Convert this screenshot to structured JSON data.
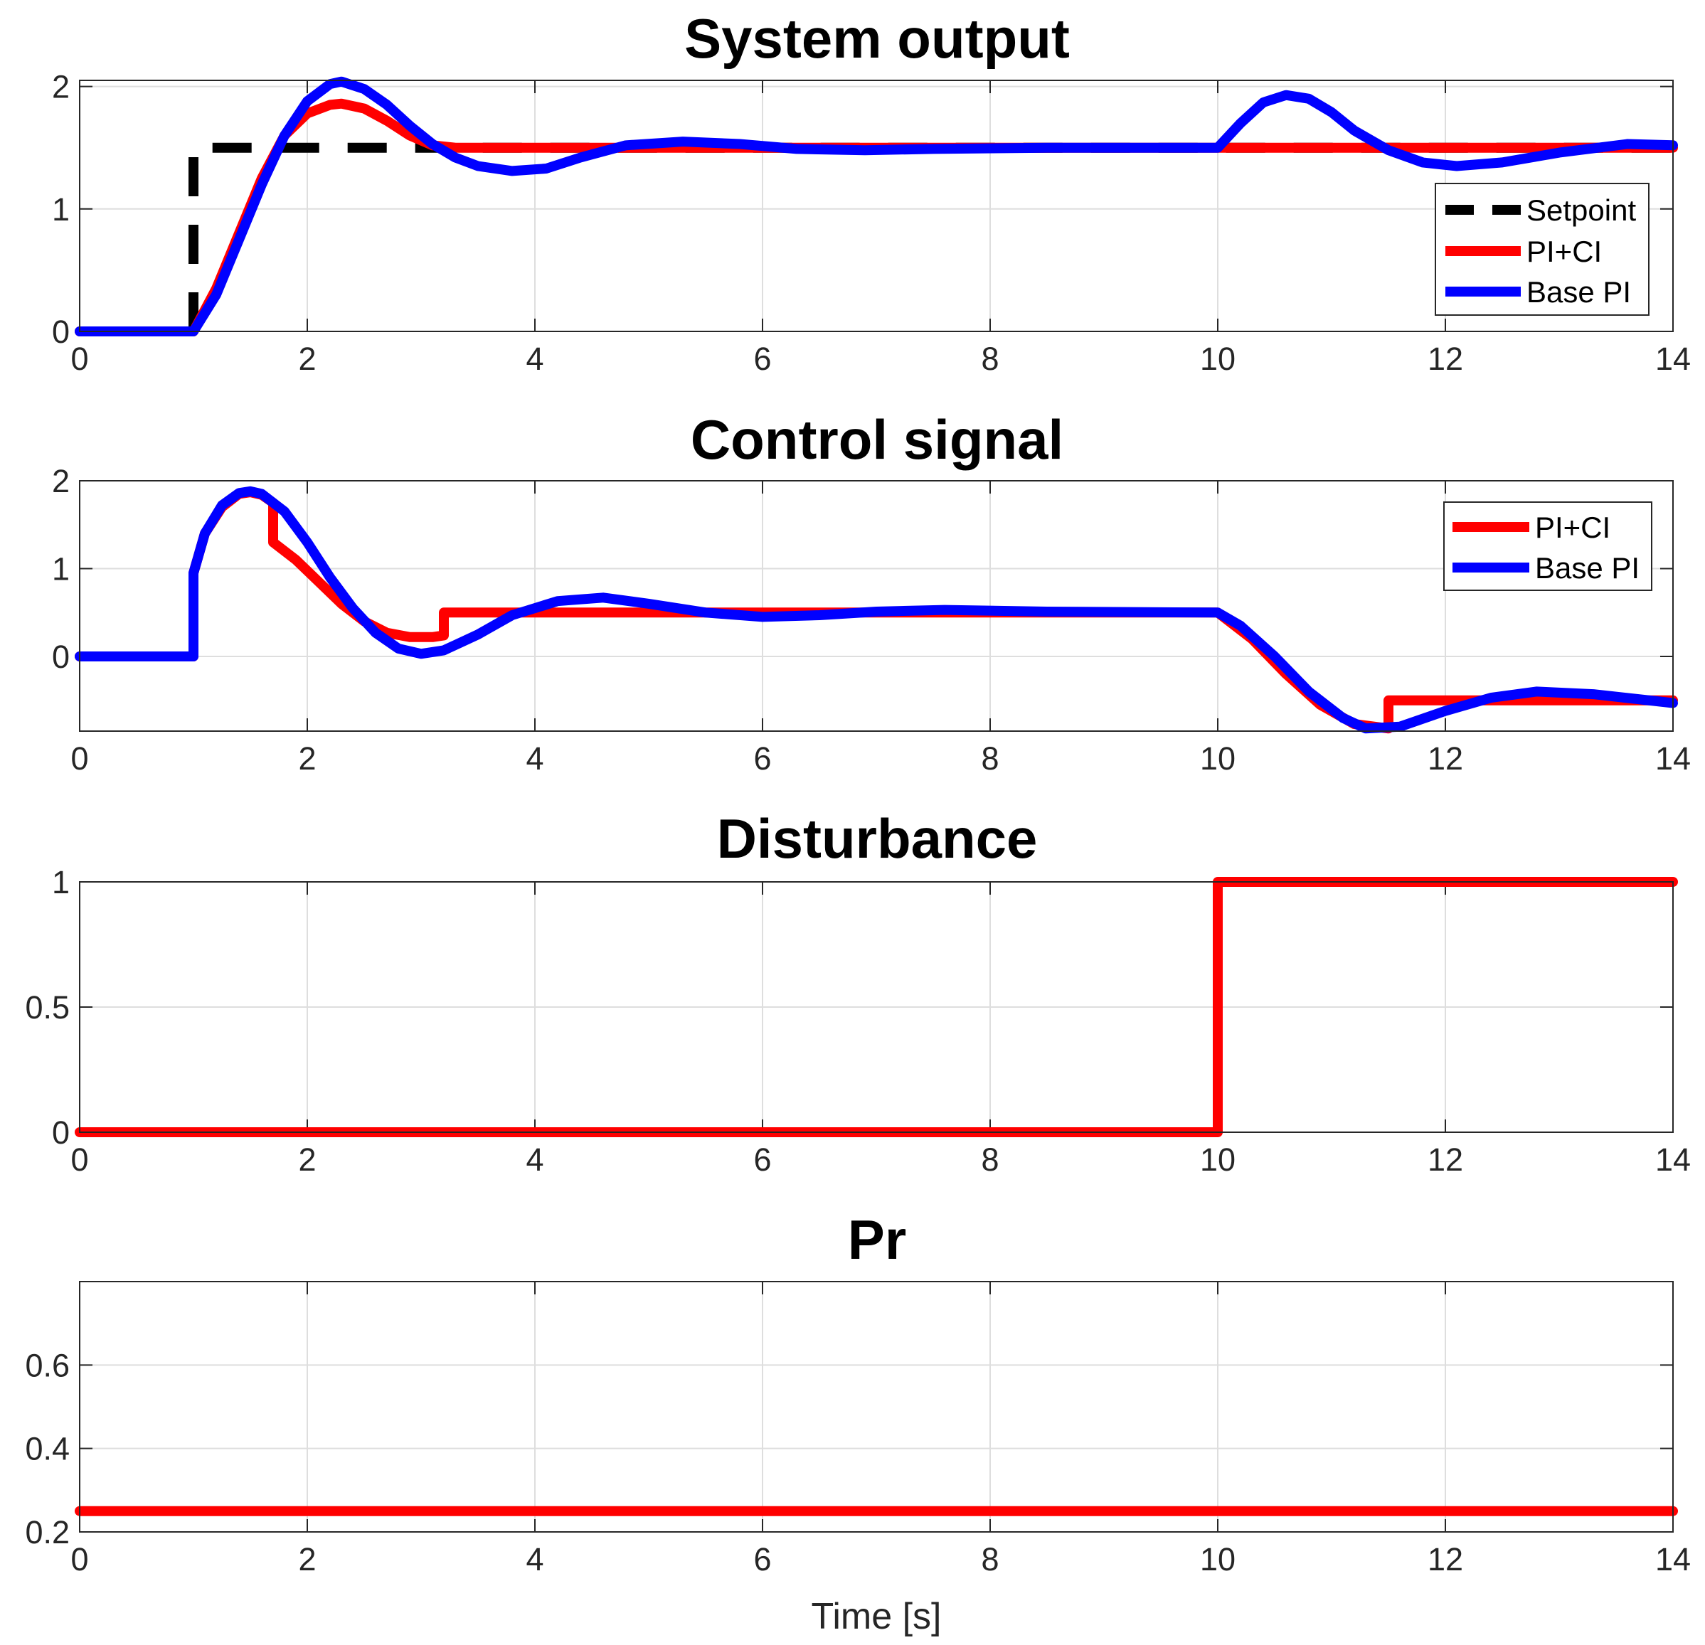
{
  "colors": {
    "setpoint": "#000000",
    "pici": "#ff0000",
    "basepi": "#0000ff"
  },
  "chart_data": [
    {
      "type": "line",
      "title": "System output",
      "xlabel": "",
      "ylabel": "",
      "xlim": [
        0,
        14
      ],
      "ylim": [
        0,
        2.05
      ],
      "xticks": [
        0,
        2,
        4,
        6,
        8,
        10,
        12,
        14
      ],
      "xtick_labels": [
        "0",
        "2",
        "4",
        "6",
        "8",
        "10",
        "12",
        "14"
      ],
      "yticks": [
        0,
        1,
        2
      ],
      "ytick_labels": [
        "0",
        "1",
        "2"
      ],
      "grid": true,
      "legend_position": "right",
      "series": [
        {
          "name": "Setpoint",
          "style": "dashed",
          "color_key": "setpoint",
          "x": [
            1,
            1,
            14
          ],
          "y": [
            0,
            1.5,
            1.5
          ]
        },
        {
          "name": "PI+CI",
          "style": "solid",
          "color_key": "pici",
          "x": [
            0,
            1,
            1.2,
            1.4,
            1.6,
            1.8,
            2.0,
            2.2,
            2.3,
            2.5,
            2.7,
            2.9,
            3.1,
            3.3,
            3.5,
            4,
            14
          ],
          "y": [
            0,
            0,
            0.35,
            0.8,
            1.25,
            1.6,
            1.78,
            1.85,
            1.86,
            1.82,
            1.72,
            1.6,
            1.52,
            1.5,
            1.5,
            1.5,
            1.5
          ]
        },
        {
          "name": "Base PI",
          "style": "solid",
          "color_key": "basepi",
          "x": [
            0,
            1,
            1.2,
            1.4,
            1.6,
            1.8,
            2.0,
            2.2,
            2.3,
            2.5,
            2.7,
            2.9,
            3.1,
            3.3,
            3.5,
            3.8,
            4.1,
            4.4,
            4.8,
            5.3,
            5.8,
            6.3,
            6.9,
            7.5,
            8.5,
            10,
            10.2,
            10.4,
            10.6,
            10.8,
            11.0,
            11.2,
            11.5,
            11.8,
            12.1,
            12.5,
            13.0,
            13.6,
            14
          ],
          "y": [
            0,
            0,
            0.3,
            0.75,
            1.2,
            1.6,
            1.88,
            2.02,
            2.04,
            1.98,
            1.85,
            1.68,
            1.53,
            1.42,
            1.35,
            1.31,
            1.33,
            1.42,
            1.52,
            1.55,
            1.53,
            1.49,
            1.48,
            1.49,
            1.5,
            1.5,
            1.7,
            1.87,
            1.93,
            1.9,
            1.79,
            1.64,
            1.48,
            1.38,
            1.35,
            1.38,
            1.46,
            1.53,
            1.52
          ]
        }
      ]
    },
    {
      "type": "line",
      "title": "Control signal",
      "xlabel": "",
      "ylabel": "",
      "xlim": [
        0,
        14
      ],
      "ylim": [
        -0.85,
        2.0
      ],
      "xticks": [
        0,
        2,
        4,
        6,
        8,
        10,
        12,
        14
      ],
      "xtick_labels": [
        "0",
        "2",
        "4",
        "6",
        "8",
        "10",
        "12",
        "14"
      ],
      "yticks": [
        0,
        1,
        2
      ],
      "ytick_labels": [
        "0",
        "1",
        "2"
      ],
      "grid": true,
      "legend_position": "top-right",
      "series": [
        {
          "name": "PI+CI",
          "style": "solid",
          "color_key": "pici",
          "x": [
            0,
            1,
            1,
            1.1,
            1.25,
            1.4,
            1.5,
            1.6,
            1.7,
            1.7,
            1.9,
            2.1,
            2.3,
            2.5,
            2.7,
            2.9,
            3.1,
            3.2,
            3.2,
            10,
            10.3,
            10.6,
            10.9,
            11.2,
            11.5,
            11.5,
            14
          ],
          "y": [
            0,
            0,
            0.95,
            1.4,
            1.7,
            1.85,
            1.87,
            1.84,
            1.75,
            1.3,
            1.1,
            0.85,
            0.6,
            0.4,
            0.27,
            0.22,
            0.22,
            0.24,
            0.5,
            0.5,
            0.2,
            -0.2,
            -0.55,
            -0.77,
            -0.82,
            -0.5,
            -0.5
          ]
        },
        {
          "name": "Base PI",
          "style": "solid",
          "color_key": "basepi",
          "x": [
            0,
            1,
            1,
            1.1,
            1.25,
            1.4,
            1.5,
            1.6,
            1.8,
            2.0,
            2.2,
            2.4,
            2.6,
            2.8,
            3.0,
            3.2,
            3.5,
            3.8,
            4.2,
            4.6,
            5.0,
            5.5,
            6.0,
            6.5,
            7.0,
            7.6,
            8.5,
            10,
            10.2,
            10.5,
            10.8,
            11.1,
            11.3,
            11.6,
            12.0,
            12.4,
            12.8,
            13.3,
            14
          ],
          "y": [
            0,
            0,
            0.95,
            1.4,
            1.72,
            1.86,
            1.88,
            1.85,
            1.65,
            1.3,
            0.9,
            0.55,
            0.27,
            0.09,
            0.03,
            0.07,
            0.25,
            0.47,
            0.63,
            0.67,
            0.6,
            0.5,
            0.45,
            0.47,
            0.51,
            0.53,
            0.51,
            0.5,
            0.35,
            0.0,
            -0.4,
            -0.7,
            -0.82,
            -0.8,
            -0.62,
            -0.47,
            -0.4,
            -0.43,
            -0.53
          ]
        }
      ]
    },
    {
      "type": "line",
      "title": "Disturbance",
      "xlabel": "",
      "ylabel": "",
      "xlim": [
        0,
        14
      ],
      "ylim": [
        0,
        1
      ],
      "xticks": [
        0,
        2,
        4,
        6,
        8,
        10,
        12,
        14
      ],
      "xtick_labels": [
        "0",
        "2",
        "4",
        "6",
        "8",
        "10",
        "12",
        "14"
      ],
      "yticks": [
        0,
        0.5,
        1
      ],
      "ytick_labels": [
        "0",
        "0.5",
        "1"
      ],
      "grid": true,
      "series": [
        {
          "name": "Disturbance",
          "style": "solid",
          "color_key": "pici",
          "x": [
            0,
            10,
            10,
            14
          ],
          "y": [
            0,
            0,
            1,
            1
          ]
        }
      ]
    },
    {
      "type": "line",
      "title": "Pr",
      "xlabel": "Time [s]",
      "ylabel": "",
      "xlim": [
        0,
        14
      ],
      "ylim": [
        0.2,
        0.8
      ],
      "xticks": [
        0,
        2,
        4,
        6,
        8,
        10,
        12,
        14
      ],
      "xtick_labels": [
        "0",
        "2",
        "4",
        "6",
        "8",
        "10",
        "12",
        "14"
      ],
      "yticks": [
        0.2,
        0.4,
        0.6
      ],
      "ytick_labels": [
        "0.2",
        "0.4",
        "0.6"
      ],
      "grid": true,
      "series": [
        {
          "name": "Pr",
          "style": "solid",
          "color_key": "pici",
          "x": [
            0,
            14
          ],
          "y": [
            0.25,
            0.25
          ]
        }
      ]
    }
  ]
}
